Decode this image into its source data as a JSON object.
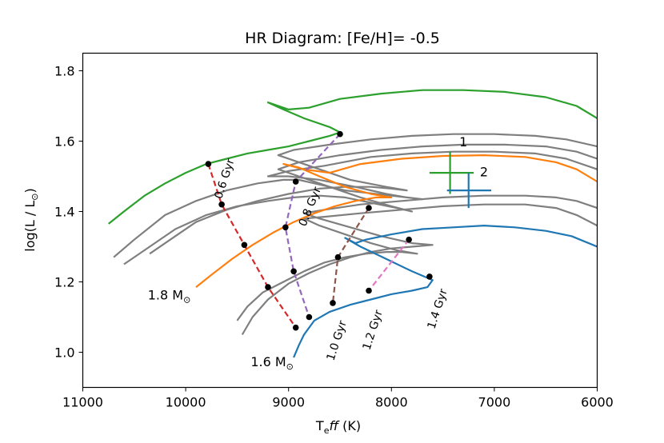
{
  "chart_data": {
    "type": "line",
    "title": "HR Diagram: [Fe/H]= -0.5",
    "xlabel_main": "T",
    "xlabel_sub": "e",
    "xlabel_ff": "ff",
    "xlabel_unit": " (K)",
    "ylabel_main": "log(L / L",
    "ylabel_sun": "⊙",
    "ylabel_close": ")",
    "xlim": [
      11000,
      6000
    ],
    "ylim": [
      0.9,
      1.85
    ],
    "xticks": [
      11000,
      10000,
      9000,
      8000,
      7000,
      6000
    ],
    "yticks": [
      1.0,
      1.2,
      1.4,
      1.6,
      1.8
    ],
    "tick_labels_x": [
      "11000",
      "10000",
      "9000",
      "8000",
      "7000",
      "6000"
    ],
    "tick_labels_y": [
      "1.0",
      "1.2",
      "1.4",
      "1.6",
      "1.8"
    ],
    "colors": {
      "blue": "#1f77b4",
      "orange": "#ff7f0e",
      "green": "#2ca02c",
      "red": "#d62728",
      "purple": "#9467bd",
      "brown": "#8c564b",
      "pink": "#e377c2",
      "gray": "#7f7f7f"
    },
    "tracks": [
      {
        "color": "gray",
        "points": [
          [
            10700,
            1.27
          ],
          [
            10500,
            1.32
          ],
          [
            10200,
            1.39
          ],
          [
            9900,
            1.43
          ],
          [
            9600,
            1.46
          ],
          [
            9300,
            1.48
          ],
          [
            9050,
            1.49
          ],
          [
            8900,
            1.49
          ],
          [
            8750,
            1.48
          ],
          [
            8600,
            1.47
          ],
          [
            8450,
            1.46
          ],
          [
            8300,
            1.455
          ],
          [
            8150,
            1.45
          ],
          [
            8000,
            1.445
          ],
          [
            7850,
            1.44
          ],
          [
            7700,
            1.435
          ],
          [
            7850,
            1.44
          ],
          [
            8050,
            1.45
          ],
          [
            8350,
            1.47
          ],
          [
            8700,
            1.49
          ],
          [
            9000,
            1.5
          ],
          [
            9200,
            1.5
          ],
          [
            9000,
            1.515
          ],
          [
            8650,
            1.53
          ],
          [
            8200,
            1.555
          ],
          [
            7800,
            1.565
          ],
          [
            7400,
            1.57
          ],
          [
            7000,
            1.57
          ],
          [
            6600,
            1.565
          ],
          [
            6300,
            1.55
          ],
          [
            6000,
            1.52
          ]
        ]
      },
      {
        "color": "gray",
        "points": [
          [
            10600,
            1.25
          ],
          [
            10400,
            1.29
          ],
          [
            10100,
            1.35
          ],
          [
            9800,
            1.39
          ],
          [
            9500,
            1.415
          ],
          [
            9200,
            1.43
          ],
          [
            8950,
            1.44
          ],
          [
            8700,
            1.445
          ],
          [
            8450,
            1.44
          ],
          [
            8200,
            1.425
          ],
          [
            7950,
            1.41
          ],
          [
            7800,
            1.4
          ],
          [
            8000,
            1.415
          ],
          [
            8300,
            1.44
          ],
          [
            8600,
            1.47
          ],
          [
            8900,
            1.5
          ],
          [
            9100,
            1.52
          ],
          [
            8900,
            1.54
          ],
          [
            8500,
            1.56
          ],
          [
            8100,
            1.575
          ],
          [
            7700,
            1.585
          ],
          [
            7300,
            1.59
          ],
          [
            6900,
            1.59
          ],
          [
            6500,
            1.585
          ],
          [
            6200,
            1.57
          ],
          [
            6000,
            1.55
          ]
        ]
      },
      {
        "color": "gray",
        "points": [
          [
            10350,
            1.28
          ],
          [
            10150,
            1.32
          ],
          [
            9900,
            1.37
          ],
          [
            9600,
            1.405
          ],
          [
            9300,
            1.43
          ],
          [
            9000,
            1.45
          ],
          [
            8700,
            1.465
          ],
          [
            8450,
            1.47
          ],
          [
            8200,
            1.47
          ],
          [
            8000,
            1.465
          ],
          [
            7850,
            1.46
          ],
          [
            8050,
            1.47
          ],
          [
            8400,
            1.49
          ],
          [
            8700,
            1.52
          ],
          [
            8950,
            1.545
          ],
          [
            9100,
            1.56
          ],
          [
            8950,
            1.575
          ],
          [
            8600,
            1.59
          ],
          [
            8200,
            1.605
          ],
          [
            7800,
            1.615
          ],
          [
            7400,
            1.62
          ],
          [
            7000,
            1.62
          ],
          [
            6600,
            1.615
          ],
          [
            6300,
            1.605
          ],
          [
            6000,
            1.585
          ]
        ]
      },
      {
        "color": "gray",
        "points": [
          [
            9500,
            1.09
          ],
          [
            9400,
            1.13
          ],
          [
            9250,
            1.17
          ],
          [
            9050,
            1.2
          ],
          [
            8850,
            1.23
          ],
          [
            8650,
            1.255
          ],
          [
            8450,
            1.27
          ],
          [
            8250,
            1.28
          ],
          [
            8050,
            1.285
          ],
          [
            7900,
            1.285
          ],
          [
            7750,
            1.28
          ],
          [
            7950,
            1.29
          ],
          [
            8200,
            1.31
          ],
          [
            8450,
            1.335
          ],
          [
            8700,
            1.36
          ],
          [
            8850,
            1.38
          ],
          [
            8650,
            1.385
          ],
          [
            8300,
            1.395
          ],
          [
            7900,
            1.405
          ],
          [
            7500,
            1.415
          ],
          [
            7100,
            1.42
          ],
          [
            6700,
            1.42
          ],
          [
            6400,
            1.41
          ],
          [
            6200,
            1.39
          ],
          [
            6000,
            1.36
          ]
        ]
      },
      {
        "color": "gray",
        "points": [
          [
            9450,
            1.05
          ],
          [
            9350,
            1.1
          ],
          [
            9200,
            1.15
          ],
          [
            9000,
            1.195
          ],
          [
            8800,
            1.225
          ],
          [
            8600,
            1.25
          ],
          [
            8400,
            1.27
          ],
          [
            8200,
            1.285
          ],
          [
            8000,
            1.295
          ],
          [
            7800,
            1.3
          ],
          [
            7600,
            1.305
          ],
          [
            7800,
            1.31
          ],
          [
            8100,
            1.33
          ],
          [
            8400,
            1.355
          ],
          [
            8700,
            1.38
          ],
          [
            8850,
            1.395
          ],
          [
            8650,
            1.405
          ],
          [
            8300,
            1.42
          ],
          [
            7900,
            1.43
          ],
          [
            7500,
            1.44
          ],
          [
            7100,
            1.445
          ],
          [
            6700,
            1.445
          ],
          [
            6400,
            1.44
          ],
          [
            6200,
            1.43
          ],
          [
            6000,
            1.41
          ]
        ]
      },
      {
        "color": "green",
        "points": [
          [
            10750,
            1.365
          ],
          [
            10600,
            1.4
          ],
          [
            10400,
            1.445
          ],
          [
            10200,
            1.48
          ],
          [
            10000,
            1.51
          ],
          [
            9800,
            1.535
          ],
          [
            9600,
            1.55
          ],
          [
            9400,
            1.565
          ],
          [
            9200,
            1.575
          ],
          [
            9000,
            1.585
          ],
          [
            8800,
            1.6
          ],
          [
            8600,
            1.615
          ],
          [
            8500,
            1.625
          ],
          [
            8600,
            1.64
          ],
          [
            8850,
            1.665
          ],
          [
            9050,
            1.69
          ],
          [
            9200,
            1.71
          ],
          [
            9000,
            1.69
          ],
          [
            8800,
            1.695
          ],
          [
            8500,
            1.72
          ],
          [
            8100,
            1.735
          ],
          [
            7700,
            1.745
          ],
          [
            7300,
            1.745
          ],
          [
            6900,
            1.74
          ],
          [
            6500,
            1.725
          ],
          [
            6200,
            1.7
          ],
          [
            6000,
            1.665
          ]
        ]
      },
      {
        "color": "orange",
        "points": [
          [
            9900,
            1.185
          ],
          [
            9750,
            1.22
          ],
          [
            9550,
            1.265
          ],
          [
            9350,
            1.305
          ],
          [
            9150,
            1.34
          ],
          [
            8950,
            1.37
          ],
          [
            8750,
            1.395
          ],
          [
            8550,
            1.415
          ],
          [
            8350,
            1.43
          ],
          [
            8150,
            1.44
          ],
          [
            8000,
            1.44
          ],
          [
            8200,
            1.45
          ],
          [
            8450,
            1.47
          ],
          [
            8700,
            1.5
          ],
          [
            8900,
            1.525
          ],
          [
            9050,
            1.535
          ],
          [
            8850,
            1.52
          ],
          [
            8600,
            1.51
          ],
          [
            8300,
            1.535
          ],
          [
            7900,
            1.55
          ],
          [
            7500,
            1.558
          ],
          [
            7100,
            1.56
          ],
          [
            6700,
            1.555
          ],
          [
            6400,
            1.54
          ],
          [
            6200,
            1.52
          ],
          [
            6000,
            1.485
          ]
        ]
      },
      {
        "color": "blue",
        "points": [
          [
            8950,
            0.985
          ],
          [
            8900,
            1.02
          ],
          [
            8850,
            1.05
          ],
          [
            8750,
            1.09
          ],
          [
            8600,
            1.115
          ],
          [
            8400,
            1.135
          ],
          [
            8200,
            1.15
          ],
          [
            8000,
            1.165
          ],
          [
            7800,
            1.175
          ],
          [
            7650,
            1.185
          ],
          [
            7600,
            1.205
          ],
          [
            7800,
            1.23
          ],
          [
            8050,
            1.265
          ],
          [
            8300,
            1.3
          ],
          [
            8450,
            1.325
          ],
          [
            8350,
            1.31
          ],
          [
            8250,
            1.32
          ],
          [
            8000,
            1.335
          ],
          [
            7700,
            1.35
          ],
          [
            7400,
            1.355
          ],
          [
            7100,
            1.36
          ],
          [
            6800,
            1.355
          ],
          [
            6500,
            1.345
          ],
          [
            6250,
            1.33
          ],
          [
            6000,
            1.3
          ]
        ]
      }
    ],
    "isochrones": [
      {
        "label": "0.6 Gyr",
        "color": "red",
        "points": [
          [
            9780,
            1.535
          ],
          [
            9650,
            1.42
          ],
          [
            9430,
            1.305
          ],
          [
            9200,
            1.185
          ],
          [
            8930,
            1.07
          ]
        ],
        "label_pos": [
          9590,
          1.49
        ],
        "label_rot": -72
      },
      {
        "label": "0.8 Gyr",
        "color": "purple",
        "points": [
          [
            8500,
            1.62
          ],
          [
            8930,
            1.485
          ],
          [
            9030,
            1.355
          ],
          [
            8950,
            1.23
          ],
          [
            8800,
            1.1
          ]
        ],
        "label_pos": [
          8760,
          1.41
        ],
        "label_rot": -68
      },
      {
        "label": "1.0 Gyr",
        "color": "brown",
        "points": [
          [
            8220,
            1.41
          ],
          [
            8520,
            1.27
          ],
          [
            8570,
            1.14
          ]
        ],
        "label_pos": [
          8500,
          1.03
        ],
        "label_rot": -72
      },
      {
        "label": "1.2 Gyr",
        "color": "pink",
        "points": [
          [
            7830,
            1.32
          ],
          [
            8220,
            1.175
          ]
        ],
        "label_pos": [
          8150,
          1.06
        ],
        "label_rot": -72
      },
      {
        "label": "1.4 Gyr",
        "color": "blue_dot",
        "points": [
          [
            7630,
            1.215
          ]
        ],
        "label_pos": [
          7520,
          1.12
        ],
        "label_rot": -72
      }
    ],
    "mass_labels": [
      {
        "text": "1.8 M",
        "sun": "⊙",
        "pos": [
          10160,
          1.15
        ]
      },
      {
        "text": "1.6 M",
        "sun": "⊙",
        "pos": [
          9160,
          0.96
        ]
      }
    ],
    "error_crosses": [
      {
        "label": "1",
        "color": "green",
        "x": 7430,
        "y": 1.51,
        "xerr": [
          7630,
          7200
        ],
        "yerr": [
          1.45,
          1.57
        ],
        "label_pos": [
          7340,
          1.585
        ]
      },
      {
        "label": "2",
        "color": "blue",
        "x": 7250,
        "y": 1.46,
        "xerr": [
          7460,
          7030
        ],
        "yerr": [
          1.41,
          1.51
        ],
        "label_pos": [
          7140,
          1.5
        ]
      }
    ]
  }
}
